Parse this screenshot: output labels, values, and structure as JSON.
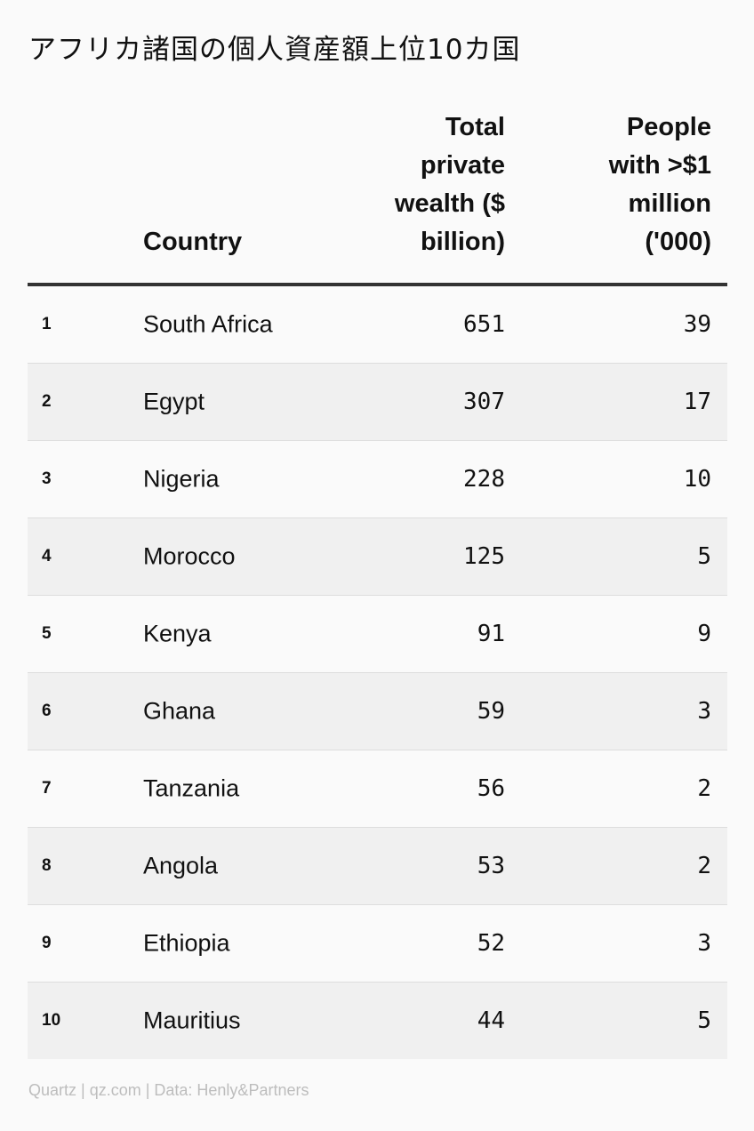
{
  "title": "アフリカ諸国の個人資産額上位10カ国",
  "chart_data": {
    "type": "table",
    "title": "アフリカ諸国の個人資産額上位10カ国",
    "columns": [
      "",
      "Country",
      "Total private wealth ($ billion)",
      "People with >$1 million ('000)"
    ],
    "header_lines": {
      "country": [
        "Country"
      ],
      "wealth": [
        "Total",
        "private",
        "wealth ($",
        "billion)"
      ],
      "people": [
        "People",
        "with >$1",
        "million",
        "('000)"
      ]
    },
    "rows": [
      {
        "rank": "1",
        "country": "South Africa",
        "wealth": "651",
        "people": "39"
      },
      {
        "rank": "2",
        "country": "Egypt",
        "wealth": "307",
        "people": "17"
      },
      {
        "rank": "3",
        "country": "Nigeria",
        "wealth": "228",
        "people": "10"
      },
      {
        "rank": "4",
        "country": "Morocco",
        "wealth": "125",
        "people": "5"
      },
      {
        "rank": "5",
        "country": "Kenya",
        "wealth": "91",
        "people": "9"
      },
      {
        "rank": "6",
        "country": "Ghana",
        "wealth": "59",
        "people": "3"
      },
      {
        "rank": "7",
        "country": "Tanzania",
        "wealth": "56",
        "people": "2"
      },
      {
        "rank": "8",
        "country": "Angola",
        "wealth": "53",
        "people": "2"
      },
      {
        "rank": "9",
        "country": "Ethiopia",
        "wealth": "52",
        "people": "3"
      },
      {
        "rank": "10",
        "country": "Mauritius",
        "wealth": "44",
        "people": "5"
      }
    ]
  },
  "source": "Quartz | qz.com | Data: Henly&Partners"
}
